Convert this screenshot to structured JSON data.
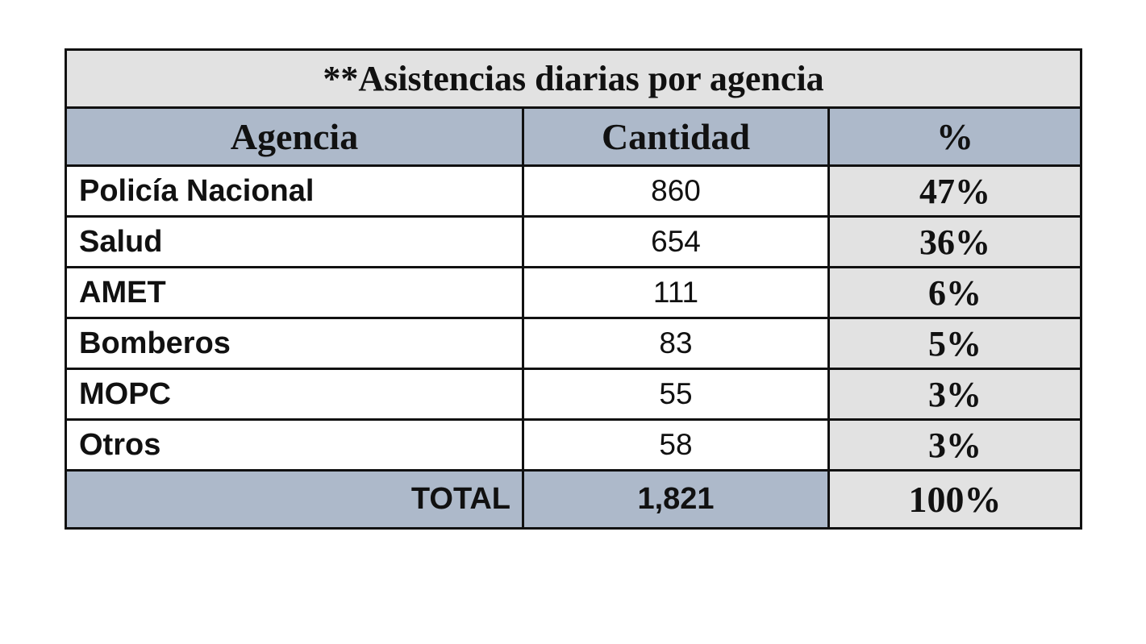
{
  "table": {
    "title": "**Asistencias diarias por agencia",
    "headers": {
      "agency": "Agencia",
      "quantity": "Cantidad",
      "percent": "%"
    },
    "rows": [
      {
        "agency": "Policía Nacional",
        "quantity": "860",
        "percent": "47%"
      },
      {
        "agency": "Salud",
        "quantity": "654",
        "percent": "36%"
      },
      {
        "agency": "AMET",
        "quantity": "111",
        "percent": "6%"
      },
      {
        "agency": "Bomberos",
        "quantity": "83",
        "percent": "5%"
      },
      {
        "agency": "MOPC",
        "quantity": "55",
        "percent": "3%"
      },
      {
        "agency": "Otros",
        "quantity": "58",
        "percent": "3%"
      }
    ],
    "total": {
      "label": "TOTAL",
      "quantity": "1,821",
      "percent": "100%"
    }
  },
  "colors": {
    "header_fill": "#adb9ca",
    "title_fill": "#e2e2e2",
    "percent_fill": "#e2e2e2",
    "border": "#111111"
  }
}
